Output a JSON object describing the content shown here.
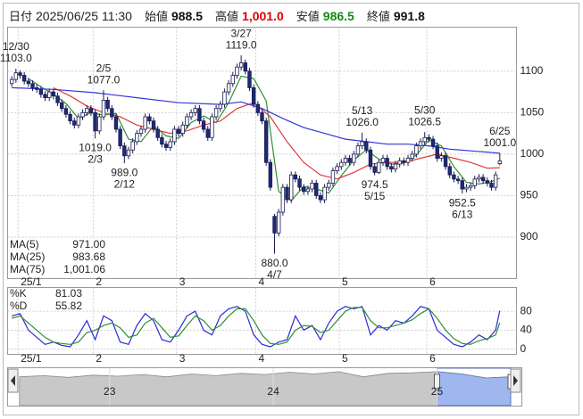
{
  "header": {
    "fields": [
      {
        "label": "日付",
        "value": "2025/06/25 11:30",
        "color": "#222222"
      },
      {
        "label": "始値",
        "value": "988.5",
        "color": "#111111"
      },
      {
        "label": "高値",
        "value": "1,001.0",
        "color": "#e00000"
      },
      {
        "label": "安値",
        "value": "986.5",
        "color": "#138a13"
      },
      {
        "label": "終値",
        "value": "991.8",
        "color": "#111111"
      }
    ]
  },
  "chart_data": [
    {
      "type": "candlestick",
      "xlim": [
        -1,
        121
      ],
      "ylim": [
        850,
        1153
      ],
      "yticks": [
        900,
        950,
        1000,
        1050,
        1100
      ],
      "xticks": [
        {
          "value": 2,
          "label": "25/1"
        },
        {
          "value": 20,
          "label": "2"
        },
        {
          "value": 40,
          "label": "3"
        },
        {
          "value": 59,
          "label": "4"
        },
        {
          "value": 79,
          "label": "5"
        },
        {
          "value": 100,
          "label": "6"
        }
      ],
      "grid": true,
      "up_color": "#ffffff",
      "down_color": "#1c2a78",
      "edge_color": "#1a1a50",
      "open": [
        1085,
        1090,
        1098,
        1095,
        1088,
        1085,
        1080,
        1078,
        1072,
        1068,
        1075,
        1070,
        1062,
        1055,
        1048,
        1040,
        1035,
        1045,
        1050,
        1055,
        1050,
        1028,
        1045,
        1065,
        1055,
        1045,
        1030,
        1010,
        998,
        1005,
        1015,
        1025,
        1030,
        1045,
        1040,
        1030,
        1020,
        1012,
        1008,
        1015,
        1030,
        1025,
        1035,
        1045,
        1050,
        1055,
        1040,
        1030,
        1020,
        1045,
        1055,
        1060,
        1075,
        1085,
        1095,
        1105,
        1110,
        1100,
        1080,
        1060,
        1050,
        1040,
        990,
        925,
        905,
        930,
        960,
        945,
        975,
        970,
        960,
        955,
        958,
        965,
        950,
        945,
        960,
        965,
        980,
        985,
        990,
        995,
        990,
        1000,
        1010,
        1015,
        1005,
        985,
        978,
        990,
        995,
        985,
        982,
        988,
        992,
        990,
        995,
        1000,
        1010,
        1015,
        1020,
        1018,
        1010,
        995,
        998,
        985,
        975,
        970,
        968,
        958,
        960,
        962,
        970,
        972,
        968,
        965,
        960,
        988.5
      ],
      "high": [
        1094,
        1103,
        1101,
        1099,
        1092,
        1089,
        1084,
        1082,
        1076,
        1079,
        1079,
        1074,
        1066,
        1059,
        1052,
        1044,
        1049,
        1054,
        1059,
        1059,
        1054,
        1049,
        1077,
        1069,
        1059,
        1049,
        1034,
        1014,
        1009,
        1019,
        1029,
        1034,
        1049,
        1049,
        1044,
        1034,
        1024,
        1016,
        1019,
        1034,
        1034,
        1039,
        1049,
        1054,
        1059,
        1059,
        1044,
        1034,
        1049,
        1059,
        1064,
        1079,
        1089,
        1099,
        1109,
        1119,
        1114,
        1104,
        1084,
        1064,
        1054,
        1044,
        994,
        928,
        934,
        964,
        964,
        979,
        979,
        974,
        964,
        962,
        969,
        969,
        954,
        964,
        969,
        984,
        989,
        994,
        999,
        999,
        1004,
        1014,
        1026,
        1019,
        1009,
        989,
        994,
        999,
        999,
        989,
        992,
        996,
        996,
        999,
        1004,
        1014,
        1019,
        1026.5,
        1024,
        1022,
        1014,
        1002,
        1002,
        989,
        979,
        974,
        972,
        964,
        966,
        974,
        976,
        976,
        972,
        969,
        979,
        1001
      ],
      "low": [
        1081,
        1086,
        1091,
        1084,
        1081,
        1076,
        1074,
        1068,
        1064,
        1064,
        1066,
        1058,
        1051,
        1044,
        1036,
        1031,
        1031,
        1041,
        1046,
        1046,
        1019,
        1024,
        1041,
        1051,
        1041,
        1026,
        1006,
        989,
        994,
        1001,
        1011,
        1021,
        1026,
        1036,
        1026,
        1016,
        1008,
        1004,
        1004,
        1011,
        1021,
        1021,
        1031,
        1041,
        1046,
        1036,
        1026,
        1016,
        1016,
        1041,
        1051,
        1056,
        1071,
        1081,
        1091,
        1101,
        1096,
        1076,
        1056,
        1046,
        1036,
        986,
        956,
        880,
        901,
        926,
        941,
        941,
        966,
        956,
        951,
        951,
        954,
        946,
        941,
        941,
        956,
        961,
        976,
        981,
        986,
        986,
        986,
        996,
        1006,
        1001,
        981,
        974.5,
        976,
        986,
        981,
        978,
        978,
        984,
        986,
        986,
        991,
        996,
        1006,
        1011,
        1014,
        1006,
        991,
        991,
        981,
        971,
        966,
        964,
        952.5,
        954,
        956,
        958,
        966,
        964,
        961,
        956,
        956,
        986.5
      ],
      "close": [
        1090,
        1098,
        1095,
        1088,
        1085,
        1080,
        1078,
        1072,
        1068,
        1075,
        1070,
        1062,
        1055,
        1048,
        1040,
        1035,
        1045,
        1050,
        1055,
        1050,
        1028,
        1045,
        1065,
        1055,
        1045,
        1030,
        1010,
        998,
        1005,
        1015,
        1025,
        1030,
        1045,
        1040,
        1030,
        1020,
        1012,
        1008,
        1015,
        1030,
        1025,
        1035,
        1045,
        1050,
        1055,
        1040,
        1030,
        1020,
        1045,
        1055,
        1060,
        1075,
        1085,
        1095,
        1105,
        1110,
        1100,
        1080,
        1060,
        1050,
        1040,
        990,
        960,
        905,
        930,
        960,
        945,
        975,
        970,
        960,
        955,
        958,
        965,
        950,
        945,
        960,
        965,
        980,
        985,
        990,
        995,
        990,
        1000,
        1010,
        1015,
        1005,
        985,
        978,
        990,
        995,
        985,
        982,
        988,
        992,
        990,
        995,
        1000,
        1010,
        1015,
        1020,
        1018,
        1010,
        995,
        998,
        985,
        975,
        970,
        968,
        958,
        960,
        962,
        970,
        972,
        968,
        965,
        960,
        975,
        991.8
      ],
      "series": [
        {
          "name": "MA(5)",
          "color": "#2f8f2f",
          "last": {
            "value": 971,
            "label": "971.00"
          },
          "x": [
            4,
            7,
            10,
            13,
            16,
            19,
            22,
            25,
            28,
            31,
            34,
            37,
            40,
            43,
            46,
            49,
            52,
            55,
            58,
            61,
            64,
            67,
            70,
            73,
            76,
            79,
            82,
            85,
            88,
            91,
            94,
            97,
            100,
            103,
            106,
            109,
            112,
            115,
            117
          ],
          "values": [
            1091,
            1081,
            1072,
            1061,
            1043,
            1050,
            1047,
            1049,
            1018,
            1015,
            1034,
            1022,
            1019,
            1038,
            1046,
            1038,
            1062,
            1094,
            1091,
            1064,
            955,
            944,
            961,
            958,
            953,
            974,
            993,
            1005,
            994,
            988,
            989,
            999,
            1017,
            1010,
            985,
            966,
            964,
            967,
            971
          ]
        },
        {
          "name": "MA(25)",
          "color": "#e03a3a",
          "last": {
            "value": 983.68,
            "label": "983.68"
          },
          "x": [
            10,
            14,
            18,
            22,
            26,
            30,
            34,
            38,
            42,
            46,
            50,
            54,
            58,
            62,
            66,
            70,
            74,
            78,
            82,
            86,
            90,
            94,
            98,
            102,
            106,
            110,
            114,
            117
          ],
          "values": [
            1080,
            1070,
            1058,
            1050,
            1045,
            1035,
            1030,
            1025,
            1028,
            1035,
            1040,
            1055,
            1062,
            1045,
            1015,
            990,
            975,
            970,
            978,
            988,
            990,
            990,
            995,
            1000,
            995,
            990,
            983,
            983.68
          ]
        },
        {
          "name": "MA(75)",
          "color": "#3535d8",
          "last": {
            "value": 1001.06,
            "label": "1,001.06"
          },
          "x": [
            0,
            10,
            20,
            30,
            40,
            50,
            55,
            60,
            65,
            70,
            75,
            80,
            85,
            90,
            95,
            100,
            105,
            110,
            117
          ],
          "values": [
            1080,
            1078,
            1074,
            1068,
            1062,
            1060,
            1063,
            1055,
            1043,
            1032,
            1025,
            1018,
            1015,
            1012,
            1012,
            1010,
            1006,
            1004,
            1001.06
          ]
        }
      ],
      "annotations": [
        {
          "x": 1,
          "date": "12/30",
          "price": {
            "value": 1103,
            "label": "1103.0"
          }
        },
        {
          "x": 22,
          "date": "2/5",
          "price": {
            "value": 1077,
            "label": "1077.0"
          }
        },
        {
          "x": 20,
          "date": "2/3",
          "price": {
            "value": 1019,
            "label": "1019.0"
          }
        },
        {
          "x": 27,
          "date": "2/12",
          "price": {
            "value": 989,
            "label": "989.0"
          }
        },
        {
          "x": 55,
          "date": "3/27",
          "price": {
            "value": 1119,
            "label": "1119.0"
          }
        },
        {
          "x": 63,
          "date": "4/7",
          "price": {
            "value": 880,
            "label": "880.0"
          }
        },
        {
          "x": 84,
          "date": "5/13",
          "price": {
            "value": 1026,
            "label": "1026.0"
          }
        },
        {
          "x": 87,
          "date": "5/15",
          "price": {
            "value": 974.5,
            "label": "974.5"
          }
        },
        {
          "x": 99,
          "date": "5/30",
          "price": {
            "value": 1026.5,
            "label": "1026.5"
          }
        },
        {
          "x": 108,
          "date": "6/13",
          "price": {
            "value": 952.5,
            "label": "952.5"
          }
        },
        {
          "x": 117,
          "date": "6/25",
          "price": {
            "value": 1001,
            "label": "1001.0"
          }
        }
      ]
    },
    {
      "type": "line",
      "xlim": [
        -1,
        121
      ],
      "ylim": [
        -11,
        130
      ],
      "yticks": [
        0,
        40,
        80
      ],
      "grid": true,
      "series": [
        {
          "name": "%K",
          "color": "#2b2bd6",
          "last": {
            "value": 81.03,
            "label": "81.03"
          },
          "x": [
            0,
            2,
            4,
            6,
            8,
            10,
            12,
            14,
            16,
            18,
            20,
            22,
            24,
            26,
            28,
            30,
            32,
            34,
            36,
            38,
            40,
            42,
            44,
            46,
            48,
            50,
            52,
            54,
            56,
            58,
            60,
            62,
            64,
            66,
            68,
            70,
            72,
            74,
            76,
            78,
            80,
            82,
            84,
            86,
            88,
            90,
            92,
            94,
            96,
            98,
            100,
            102,
            104,
            106,
            108,
            110,
            112,
            114,
            116,
            117
          ],
          "values": [
            70,
            75,
            40,
            25,
            10,
            15,
            8,
            5,
            30,
            60,
            20,
            70,
            60,
            15,
            10,
            50,
            75,
            60,
            20,
            15,
            40,
            70,
            80,
            40,
            30,
            70,
            85,
            90,
            80,
            30,
            10,
            5,
            15,
            20,
            70,
            40,
            50,
            20,
            55,
            80,
            90,
            85,
            90,
            30,
            50,
            40,
            60,
            55,
            70,
            90,
            85,
            40,
            25,
            10,
            5,
            15,
            30,
            20,
            40,
            81.03
          ]
        },
        {
          "name": "%D",
          "color": "#2f8f2f",
          "last": {
            "value": 55.82,
            "label": "55.82"
          },
          "x": [
            0,
            2,
            4,
            6,
            8,
            10,
            12,
            14,
            16,
            18,
            20,
            22,
            24,
            26,
            28,
            30,
            32,
            34,
            36,
            38,
            40,
            42,
            44,
            46,
            48,
            50,
            52,
            54,
            56,
            58,
            60,
            62,
            64,
            66,
            68,
            70,
            72,
            74,
            76,
            78,
            80,
            82,
            84,
            86,
            88,
            90,
            92,
            94,
            96,
            98,
            100,
            102,
            104,
            106,
            108,
            110,
            112,
            114,
            116,
            117
          ],
          "values": [
            65,
            70,
            55,
            40,
            25,
            15,
            12,
            10,
            15,
            35,
            40,
            50,
            55,
            45,
            25,
            30,
            55,
            65,
            45,
            25,
            28,
            50,
            70,
            60,
            40,
            50,
            70,
            85,
            85,
            60,
            30,
            12,
            10,
            15,
            40,
            50,
            48,
            35,
            40,
            60,
            80,
            88,
            88,
            60,
            45,
            45,
            50,
            55,
            62,
            75,
            85,
            65,
            40,
            22,
            12,
            10,
            18,
            22,
            30,
            55.82
          ]
        }
      ]
    },
    {
      "type": "area",
      "xlim": [
        22.44,
        25.45
      ],
      "ylim": [
        500,
        1150
      ],
      "xticks": [
        23,
        24,
        25
      ],
      "range": [
        25,
        25.45
      ],
      "color": "#c8c8c8",
      "range_color": "#9fb6ee",
      "x": [
        22.45,
        22.6,
        22.75,
        22.9,
        23.05,
        23.2,
        23.35,
        23.5,
        23.65,
        23.8,
        23.95,
        24.1,
        24.25,
        24.4,
        24.55,
        24.7,
        24.85,
        25.0,
        25.15,
        25.3,
        25.45
      ],
      "values": [
        1000,
        1020,
        990,
        1030,
        1010,
        1040,
        1000,
        1050,
        1020,
        1060,
        1040,
        1080,
        1050,
        1090,
        1000,
        1060,
        1070,
        1090,
        1050,
        980,
        1000
      ]
    }
  ]
}
